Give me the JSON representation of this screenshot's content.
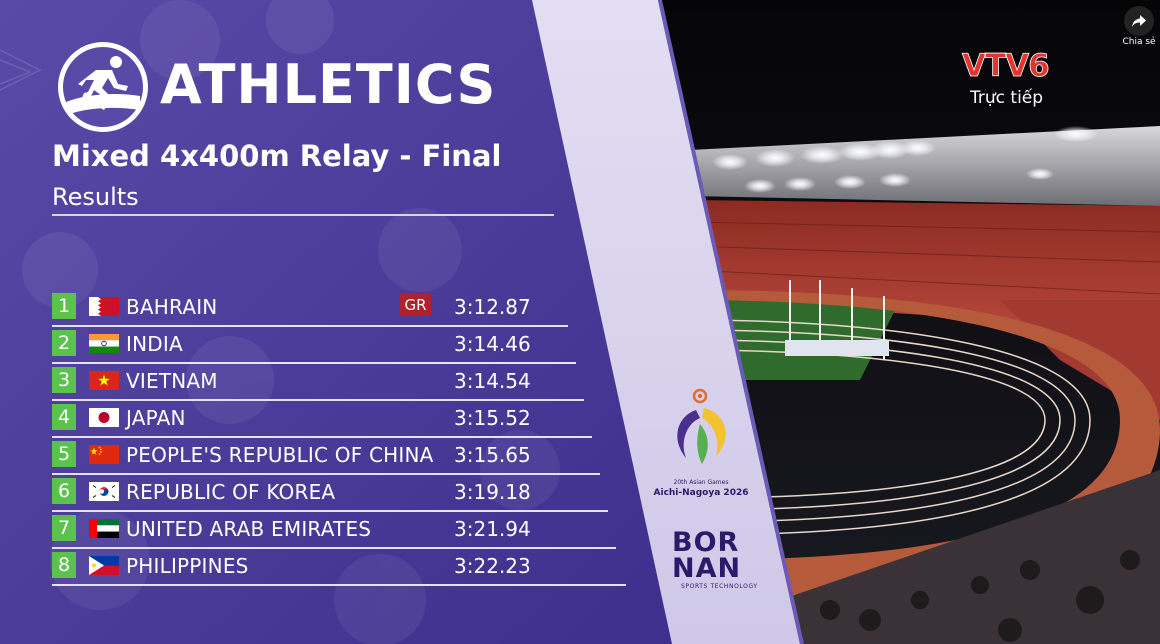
{
  "broadcast": {
    "channel_logo_text": "VTV6",
    "live_label": "Trực tiếp",
    "share_label": "Chia sẻ"
  },
  "graphic": {
    "sport": "ATHLETICS",
    "event": "Mixed 4x400m Relay - Final",
    "subtitle": "Results",
    "colors": {
      "panel": "#4a3a9e",
      "rank_badge": "#5cc24e",
      "record_badge": "#b0212c",
      "text": "#ffffff"
    }
  },
  "results": [
    {
      "rank": "1",
      "country": "BAHRAIN",
      "flag": "bahrain-flag-icon",
      "record": "GR",
      "time": "3:12.87"
    },
    {
      "rank": "2",
      "country": "INDIA",
      "flag": "india-flag-icon",
      "record": "",
      "time": "3:14.46"
    },
    {
      "rank": "3",
      "country": "VIETNAM",
      "flag": "vietnam-flag-icon",
      "record": "",
      "time": "3:14.54"
    },
    {
      "rank": "4",
      "country": "JAPAN",
      "flag": "japan-flag-icon",
      "record": "",
      "time": "3:15.52"
    },
    {
      "rank": "5",
      "country": "PEOPLE'S REPUBLIC OF CHINA",
      "flag": "china-flag-icon",
      "record": "",
      "time": "3:15.65"
    },
    {
      "rank": "6",
      "country": "REPUBLIC OF KOREA",
      "flag": "korea-flag-icon",
      "record": "",
      "time": "3:19.18"
    },
    {
      "rank": "7",
      "country": "UNITED ARAB EMIRATES",
      "flag": "uae-flag-icon",
      "record": "",
      "time": "3:21.94"
    },
    {
      "rank": "8",
      "country": "PHILIPPINES",
      "flag": "philippines-flag-icon",
      "record": "",
      "time": "3:22.23"
    }
  ],
  "sponsors": {
    "games_line1": "20th Asian Games",
    "games_line2": "Aichi-Nagoya 2026",
    "timing_brand_line1": "BOR",
    "timing_brand_line2": "NAN",
    "timing_tagline": "SPORTS TECHNOLOGY"
  }
}
